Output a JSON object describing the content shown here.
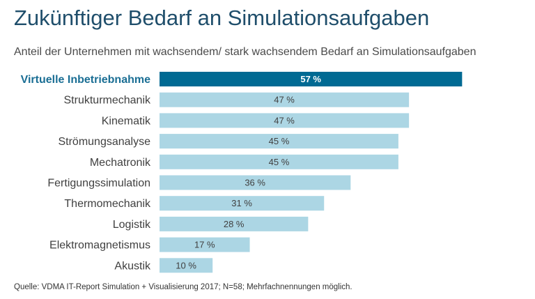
{
  "header": {
    "title": "Zukünftiger Bedarf an Simulationsaufgaben",
    "subtitle": "Anteil der Unternehmen mit wachsendem/ stark wachsendem Bedarf an Simulationsaufgaben"
  },
  "footer": {
    "source": "Quelle: VDMA IT-Report Simulation + Visualisierung 2017; N=58; Mehrfachnennungen möglich."
  },
  "colors": {
    "highlight_bar": "#006a93",
    "bar": "#acd6e4",
    "title": "#1f4e6b"
  },
  "chart_data": {
    "type": "bar",
    "orientation": "horizontal",
    "categories": [
      "Virtuelle Inbetriebnahme",
      "Strukturmechanik",
      "Kinematik",
      "Strömungsanalyse",
      "Mechatronik",
      "Fertigungssimulation",
      "Thermomechanik",
      "Logistik",
      "Elektromagnetismus",
      "Akustik"
    ],
    "values": [
      57,
      47,
      47,
      45,
      45,
      36,
      31,
      28,
      17,
      10
    ],
    "value_labels": [
      "57 %",
      "47 %",
      "47 %",
      "45 %",
      "45 %",
      "36 %",
      "31 %",
      "28 %",
      "17 %",
      "10 %"
    ],
    "highlight_index": 0,
    "unit": "%",
    "xlim": [
      0,
      100
    ],
    "grid": false,
    "legend": "none"
  }
}
